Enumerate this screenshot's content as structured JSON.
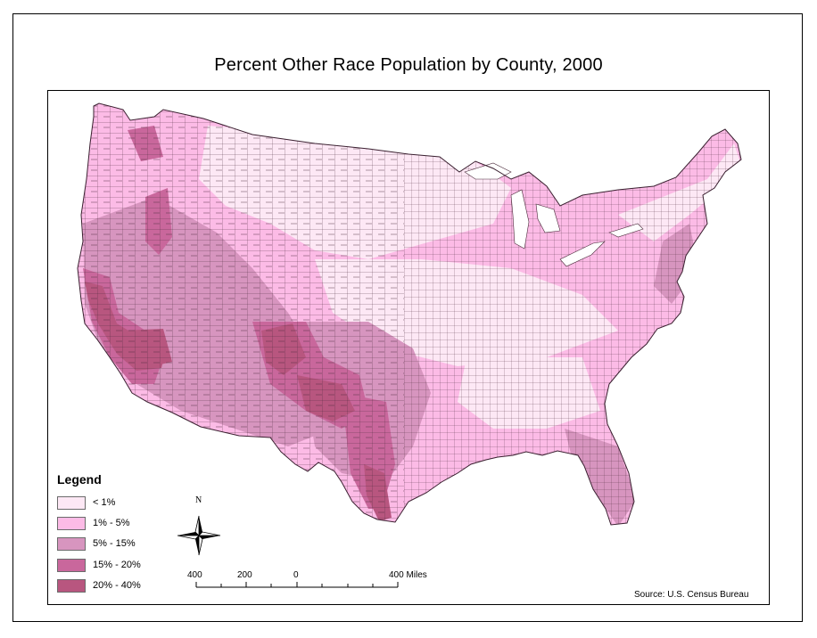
{
  "title": "Percent Other Race Population by County, 2000",
  "legend": {
    "title": "Legend",
    "items": [
      {
        "label": "< 1%",
        "color": "#fde8f5"
      },
      {
        "label": "1% - 5%",
        "color": "#fcbbe6"
      },
      {
        "label": "5% - 15%",
        "color": "#d795bf"
      },
      {
        "label": "15% - 20%",
        "color": "#c9679c"
      },
      {
        "label": "20% - 40%",
        "color": "#b8567f"
      }
    ]
  },
  "north_arrow": {
    "label": "N"
  },
  "scale_bar": {
    "labels": [
      "400",
      "200",
      "0",
      "400 Miles"
    ]
  },
  "source": "Source: U.S. Census Bureau",
  "colors": {
    "border": "#000000",
    "county_lines": "#4a2a3a"
  }
}
